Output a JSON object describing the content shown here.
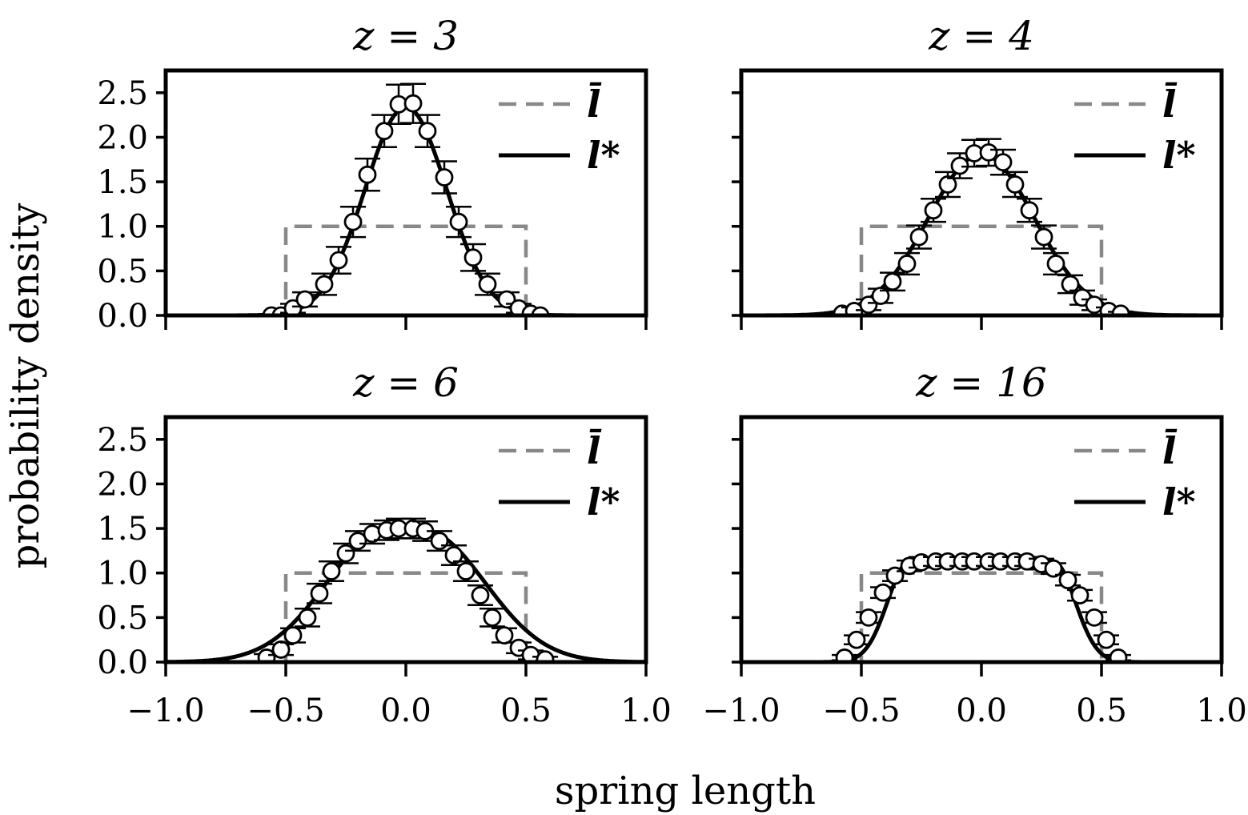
{
  "figure": {
    "xlabel": "spring length",
    "ylabel": "probability density"
  },
  "legend": {
    "uniform_label": "l̄",
    "fit_label": "l*"
  },
  "colors": {
    "uniform": "#888888",
    "fit": "#000000",
    "markers": "#000000"
  },
  "chart_data": [
    {
      "type": "line",
      "title": "z = 3",
      "xlim": [
        -1.0,
        1.0
      ],
      "ylim": [
        0.0,
        2.75
      ],
      "xticks": [
        -1.0,
        -0.5,
        0.0,
        0.5,
        1.0
      ],
      "yticks": [
        0.0,
        0.5,
        1.0,
        1.5,
        2.0,
        2.5
      ],
      "xtick_labels": [
        "−1.0",
        "−0.5",
        "0.0",
        "0.5",
        "1.0"
      ],
      "ytick_labels": [
        "0.0",
        "0.5",
        "1.0",
        "1.5",
        "2.0",
        "2.5"
      ],
      "legend_position": "top-right",
      "series": [
        {
          "name": "l̄",
          "style": "dashed",
          "shape": "uniform",
          "lo": -0.5,
          "hi": 0.5,
          "height": 1.0
        },
        {
          "name": "l*",
          "style": "solid",
          "shape": "gaussian",
          "peak": 2.34,
          "sigma": 0.17,
          "flat": 0.0
        },
        {
          "style": "markers",
          "x": [
            -0.56,
            -0.52,
            -0.47,
            -0.42,
            -0.34,
            -0.28,
            -0.22,
            -0.16,
            -0.09,
            -0.03,
            0.03,
            0.09,
            0.16,
            0.22,
            0.28,
            0.34,
            0.42,
            0.47,
            0.52,
            0.56
          ],
          "y": [
            0.0,
            0.0,
            0.08,
            0.18,
            0.35,
            0.62,
            1.05,
            1.58,
            2.07,
            2.37,
            2.38,
            2.07,
            1.55,
            1.05,
            0.65,
            0.35,
            0.18,
            0.08,
            0.02,
            0.0
          ],
          "err": [
            0.0,
            0.0,
            0.05,
            0.08,
            0.12,
            0.15,
            0.17,
            0.18,
            0.18,
            0.22,
            0.22,
            0.18,
            0.18,
            0.17,
            0.15,
            0.12,
            0.08,
            0.05,
            0.0,
            0.0
          ]
        }
      ]
    },
    {
      "type": "line",
      "title": "z = 4",
      "xlim": [
        -1.0,
        1.0
      ],
      "ylim": [
        0.0,
        2.75
      ],
      "xticks": [
        -1.0,
        -0.5,
        0.0,
        0.5,
        1.0
      ],
      "yticks": [
        0.0,
        0.5,
        1.0,
        1.5,
        2.0,
        2.5
      ],
      "legend_position": "top-right",
      "series": [
        {
          "name": "l̄",
          "style": "dashed",
          "shape": "uniform",
          "lo": -0.5,
          "hi": 0.5,
          "height": 1.0
        },
        {
          "name": "l*",
          "style": "solid",
          "shape": "gaussian",
          "peak": 1.81,
          "sigma": 0.22,
          "flat": 0.0
        },
        {
          "style": "markers",
          "x": [
            -0.58,
            -0.53,
            -0.47,
            -0.42,
            -0.37,
            -0.31,
            -0.26,
            -0.2,
            -0.14,
            -0.09,
            -0.03,
            0.03,
            0.09,
            0.14,
            0.2,
            0.26,
            0.31,
            0.37,
            0.42,
            0.47,
            0.53,
            0.58
          ],
          "y": [
            0.02,
            0.05,
            0.12,
            0.22,
            0.38,
            0.58,
            0.88,
            1.18,
            1.47,
            1.68,
            1.82,
            1.83,
            1.72,
            1.47,
            1.18,
            0.88,
            0.58,
            0.35,
            0.2,
            0.12,
            0.05,
            0.02
          ],
          "err": [
            0.02,
            0.04,
            0.06,
            0.08,
            0.1,
            0.12,
            0.13,
            0.13,
            0.14,
            0.14,
            0.15,
            0.15,
            0.14,
            0.14,
            0.13,
            0.13,
            0.12,
            0.1,
            0.08,
            0.06,
            0.04,
            0.02
          ]
        }
      ]
    },
    {
      "type": "line",
      "title": "z = 6",
      "xlim": [
        -1.0,
        1.0
      ],
      "ylim": [
        0.0,
        2.75
      ],
      "xticks": [
        -1.0,
        -0.5,
        0.0,
        0.5,
        1.0
      ],
      "yticks": [
        0.0,
        0.5,
        1.0,
        1.5,
        2.0,
        2.5
      ],
      "legend_position": "top-right",
      "series": [
        {
          "name": "l̄",
          "style": "dashed",
          "shape": "uniform",
          "lo": -0.5,
          "hi": 0.5,
          "height": 1.0
        },
        {
          "name": "l*",
          "style": "solid",
          "shape": "gaussian",
          "peak": 1.47,
          "sigma": 0.25,
          "flat": 0.08
        },
        {
          "style": "markers",
          "x": [
            -0.58,
            -0.52,
            -0.47,
            -0.41,
            -0.36,
            -0.31,
            -0.25,
            -0.2,
            -0.14,
            -0.08,
            -0.03,
            0.03,
            0.08,
            0.14,
            0.2,
            0.25,
            0.31,
            0.36,
            0.41,
            0.47,
            0.52,
            0.58
          ],
          "y": [
            0.05,
            0.14,
            0.3,
            0.5,
            0.77,
            1.02,
            1.22,
            1.36,
            1.44,
            1.48,
            1.5,
            1.5,
            1.47,
            1.36,
            1.2,
            1.02,
            0.75,
            0.5,
            0.3,
            0.16,
            0.08,
            0.03
          ],
          "err": [
            0.04,
            0.06,
            0.08,
            0.1,
            0.11,
            0.11,
            0.11,
            0.11,
            0.11,
            0.11,
            0.11,
            0.11,
            0.11,
            0.11,
            0.11,
            0.11,
            0.11,
            0.1,
            0.08,
            0.06,
            0.05,
            0.03
          ]
        }
      ]
    },
    {
      "type": "line",
      "title": "z = 16",
      "xlim": [
        -1.0,
        1.0
      ],
      "ylim": [
        0.0,
        2.75
      ],
      "xticks": [
        -1.0,
        -0.5,
        0.0,
        0.5,
        1.0
      ],
      "yticks": [
        0.0,
        0.5,
        1.0,
        1.5,
        2.0,
        2.5
      ],
      "xtick_labels": [
        "−1.0",
        "−0.5",
        "0.0",
        "0.5",
        "1.0"
      ],
      "legend_position": "top-right",
      "series": [
        {
          "name": "l̄",
          "style": "dashed",
          "shape": "uniform",
          "lo": -0.5,
          "hi": 0.5,
          "height": 1.0
        },
        {
          "name": "l*",
          "style": "solid",
          "shape": "plateau",
          "peak": 1.13,
          "sigma": 0.09,
          "flat": 0.3
        },
        {
          "style": "markers",
          "x": [
            -0.57,
            -0.52,
            -0.47,
            -0.41,
            -0.36,
            -0.3,
            -0.25,
            -0.19,
            -0.14,
            -0.08,
            -0.03,
            0.03,
            0.08,
            0.14,
            0.19,
            0.25,
            0.3,
            0.36,
            0.41,
            0.47,
            0.52,
            0.57
          ],
          "y": [
            0.05,
            0.25,
            0.5,
            0.78,
            0.97,
            1.08,
            1.12,
            1.13,
            1.13,
            1.13,
            1.13,
            1.13,
            1.13,
            1.13,
            1.13,
            1.1,
            1.05,
            0.92,
            0.75,
            0.5,
            0.25,
            0.05
          ],
          "err": [
            0.03,
            0.05,
            0.06,
            0.06,
            0.06,
            0.06,
            0.06,
            0.05,
            0.05,
            0.05,
            0.05,
            0.05,
            0.05,
            0.05,
            0.05,
            0.06,
            0.06,
            0.06,
            0.06,
            0.06,
            0.05,
            0.03
          ]
        }
      ]
    }
  ]
}
